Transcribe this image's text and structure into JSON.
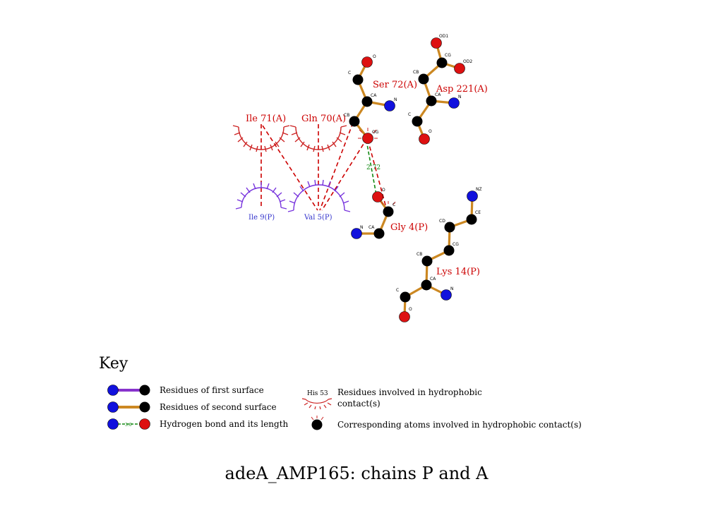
{
  "colors": {
    "bond_second": "#cc8822",
    "bond_first": "#8833cc",
    "atom_C": "#000000",
    "atom_N": "#1111dd",
    "atom_O": "#dd1111",
    "hydrophobic_red": "#cc2222",
    "hydrophobic_blue": "#7733dd",
    "hbond": "#118811",
    "contact": "#cc0000"
  },
  "residues": {
    "ser72": "Ser 72(A)",
    "asp221": "Asp 221(A)",
    "gly4": "Gly 4(P)",
    "lys14": "Lys 14(P)",
    "ile71": "Ile 71(A)",
    "gln70": "Gln 70(A)",
    "ile9": "Ile 9(P)",
    "val5": "Val 5(P)"
  },
  "atoms": {
    "ser_O": "O",
    "ser_C": "C",
    "ser_CA": "CA",
    "ser_N": "N",
    "ser_CB": "CB",
    "ser_OG": "OG",
    "asp_OD1": "OD1",
    "asp_CG": "CG",
    "asp_OD2": "OD2",
    "asp_CB": "CB",
    "asp_CA": "CA",
    "asp_N": "N",
    "asp_C": "C",
    "asp_O": "O",
    "gly_O": "O",
    "gly_C": "C",
    "gly_CA": "CA",
    "gly_N": "N",
    "lys_NZ": "NZ",
    "lys_CE": "CE",
    "lys_CD": "CD",
    "lys_CG": "CG",
    "lys_CB": "CB",
    "lys_CA": "CA",
    "lys_N": "N",
    "lys_C": "C",
    "lys_O": "O"
  },
  "hbond_length": "2.72",
  "key": {
    "title": "Key",
    "first_surface": "Residues of first surface",
    "second_surface": "Residues of second surface",
    "hbond": "Hydrogen bond and its length",
    "hbond_example": "3.0",
    "hydrophobic_example": "His 53",
    "hydrophobic_line1": "Residues involved in hydrophobic",
    "hydrophobic_line2": "contact(s)",
    "corresponding_atoms": "Corresponding atoms involved in hydrophobic contact(s)"
  },
  "caption": "adeA_AMP165: chains P and A"
}
